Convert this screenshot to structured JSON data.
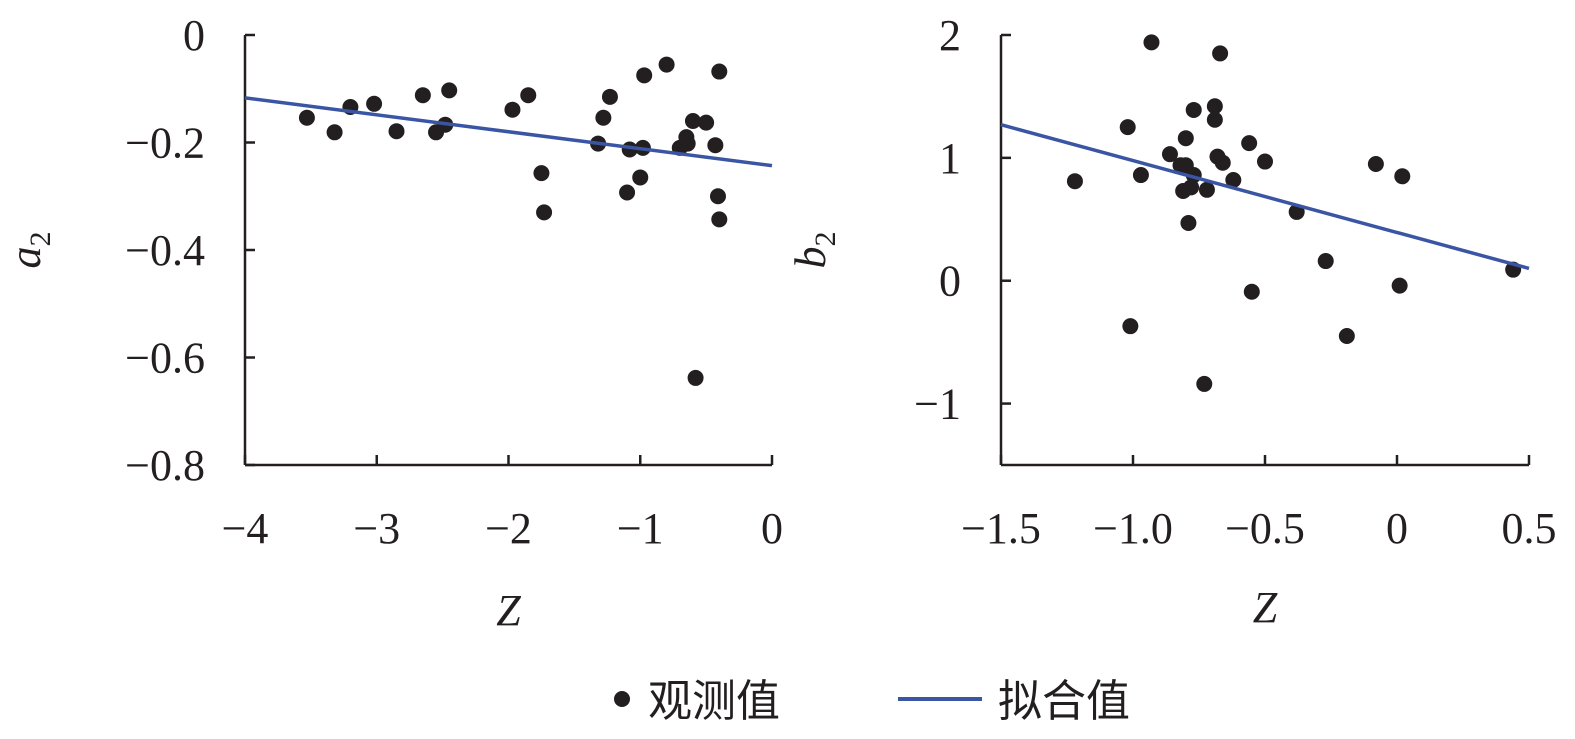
{
  "colors": {
    "observed": "#231f20",
    "fit": "#3a55a4",
    "axis": "#231f20"
  },
  "legend": {
    "observed_label": "观测值",
    "fit_label": "拟合值"
  },
  "chart_data": [
    {
      "type": "scatter",
      "xlabel": "Z",
      "ylabel_main": "a",
      "ylabel_sub": "2",
      "xlim": [
        -4,
        0
      ],
      "ylim": [
        -0.8,
        0
      ],
      "xticks": [
        -4,
        -3,
        -2,
        -1,
        0
      ],
      "xtick_labels": [
        "−4",
        "−3",
        "−2",
        "−1",
        "0"
      ],
      "yticks": [
        0,
        -0.2,
        -0.4,
        -0.6,
        -0.8
      ],
      "ytick_labels": [
        "0",
        "−0.2",
        "−0.4",
        "−0.6",
        "−0.8"
      ],
      "series": [
        {
          "name": "观测值",
          "kind": "points",
          "x": [
            -3.53,
            -3.32,
            -3.2,
            -3.02,
            -2.85,
            -2.65,
            -2.55,
            -2.48,
            -2.45,
            -1.97,
            -1.85,
            -1.75,
            -1.73,
            -1.32,
            -1.28,
            -1.23,
            -1.1,
            -1.08,
            -1.0,
            -0.98,
            -0.97,
            -0.8,
            -0.7,
            -0.65,
            -0.64,
            -0.6,
            -0.58,
            -0.5,
            -0.43,
            -0.41,
            -0.4,
            -0.4
          ],
          "y": [
            -0.154,
            -0.181,
            -0.134,
            -0.128,
            -0.179,
            -0.112,
            -0.181,
            -0.167,
            -0.103,
            -0.139,
            -0.112,
            -0.257,
            -0.33,
            -0.202,
            -0.154,
            -0.115,
            -0.293,
            -0.213,
            -0.265,
            -0.21,
            -0.075,
            -0.055,
            -0.21,
            -0.19,
            -0.202,
            -0.16,
            -0.638,
            -0.163,
            -0.205,
            -0.3,
            -0.343,
            -0.068
          ]
        },
        {
          "name": "拟合值",
          "kind": "line",
          "x": [
            -4,
            0
          ],
          "y": [
            -0.117,
            -0.243
          ]
        }
      ]
    },
    {
      "type": "scatter",
      "xlabel": "Z",
      "ylabel_main": "b",
      "ylabel_sub": "2",
      "xlim": [
        -1.5,
        0.5
      ],
      "ylim": [
        -1.5,
        2
      ],
      "xticks": [
        -1.5,
        -1.0,
        -0.5,
        0,
        0.5
      ],
      "xtick_labels": [
        "−1.5",
        "−1.0",
        "−0.5",
        "0",
        "0.5"
      ],
      "yticks": [
        2,
        1,
        0,
        -1
      ],
      "ytick_labels": [
        "2",
        "1",
        "0",
        "−1"
      ],
      "series": [
        {
          "name": "观测值",
          "kind": "points",
          "x": [
            -1.22,
            -1.02,
            -1.01,
            -0.97,
            -0.93,
            -0.86,
            -0.82,
            -0.81,
            -0.8,
            -0.8,
            -0.79,
            -0.78,
            -0.77,
            -0.77,
            -0.73,
            -0.72,
            -0.69,
            -0.69,
            -0.68,
            -0.67,
            -0.66,
            -0.62,
            -0.56,
            -0.55,
            -0.5,
            -0.38,
            -0.27,
            -0.19,
            -0.08,
            0.02,
            0.01,
            0.44
          ],
          "y": [
            0.81,
            1.25,
            -0.37,
            0.86,
            1.94,
            1.03,
            0.94,
            0.73,
            1.16,
            0.94,
            0.47,
            0.76,
            1.39,
            0.86,
            -0.84,
            0.74,
            1.42,
            1.31,
            1.01,
            1.85,
            0.96,
            0.82,
            1.12,
            -0.09,
            0.97,
            0.56,
            0.16,
            -0.45,
            0.95,
            0.85,
            -0.04,
            0.09
          ]
        },
        {
          "name": "拟合值",
          "kind": "line",
          "x": [
            -1.5,
            0.5
          ],
          "y": [
            1.27,
            0.1
          ]
        }
      ]
    }
  ]
}
